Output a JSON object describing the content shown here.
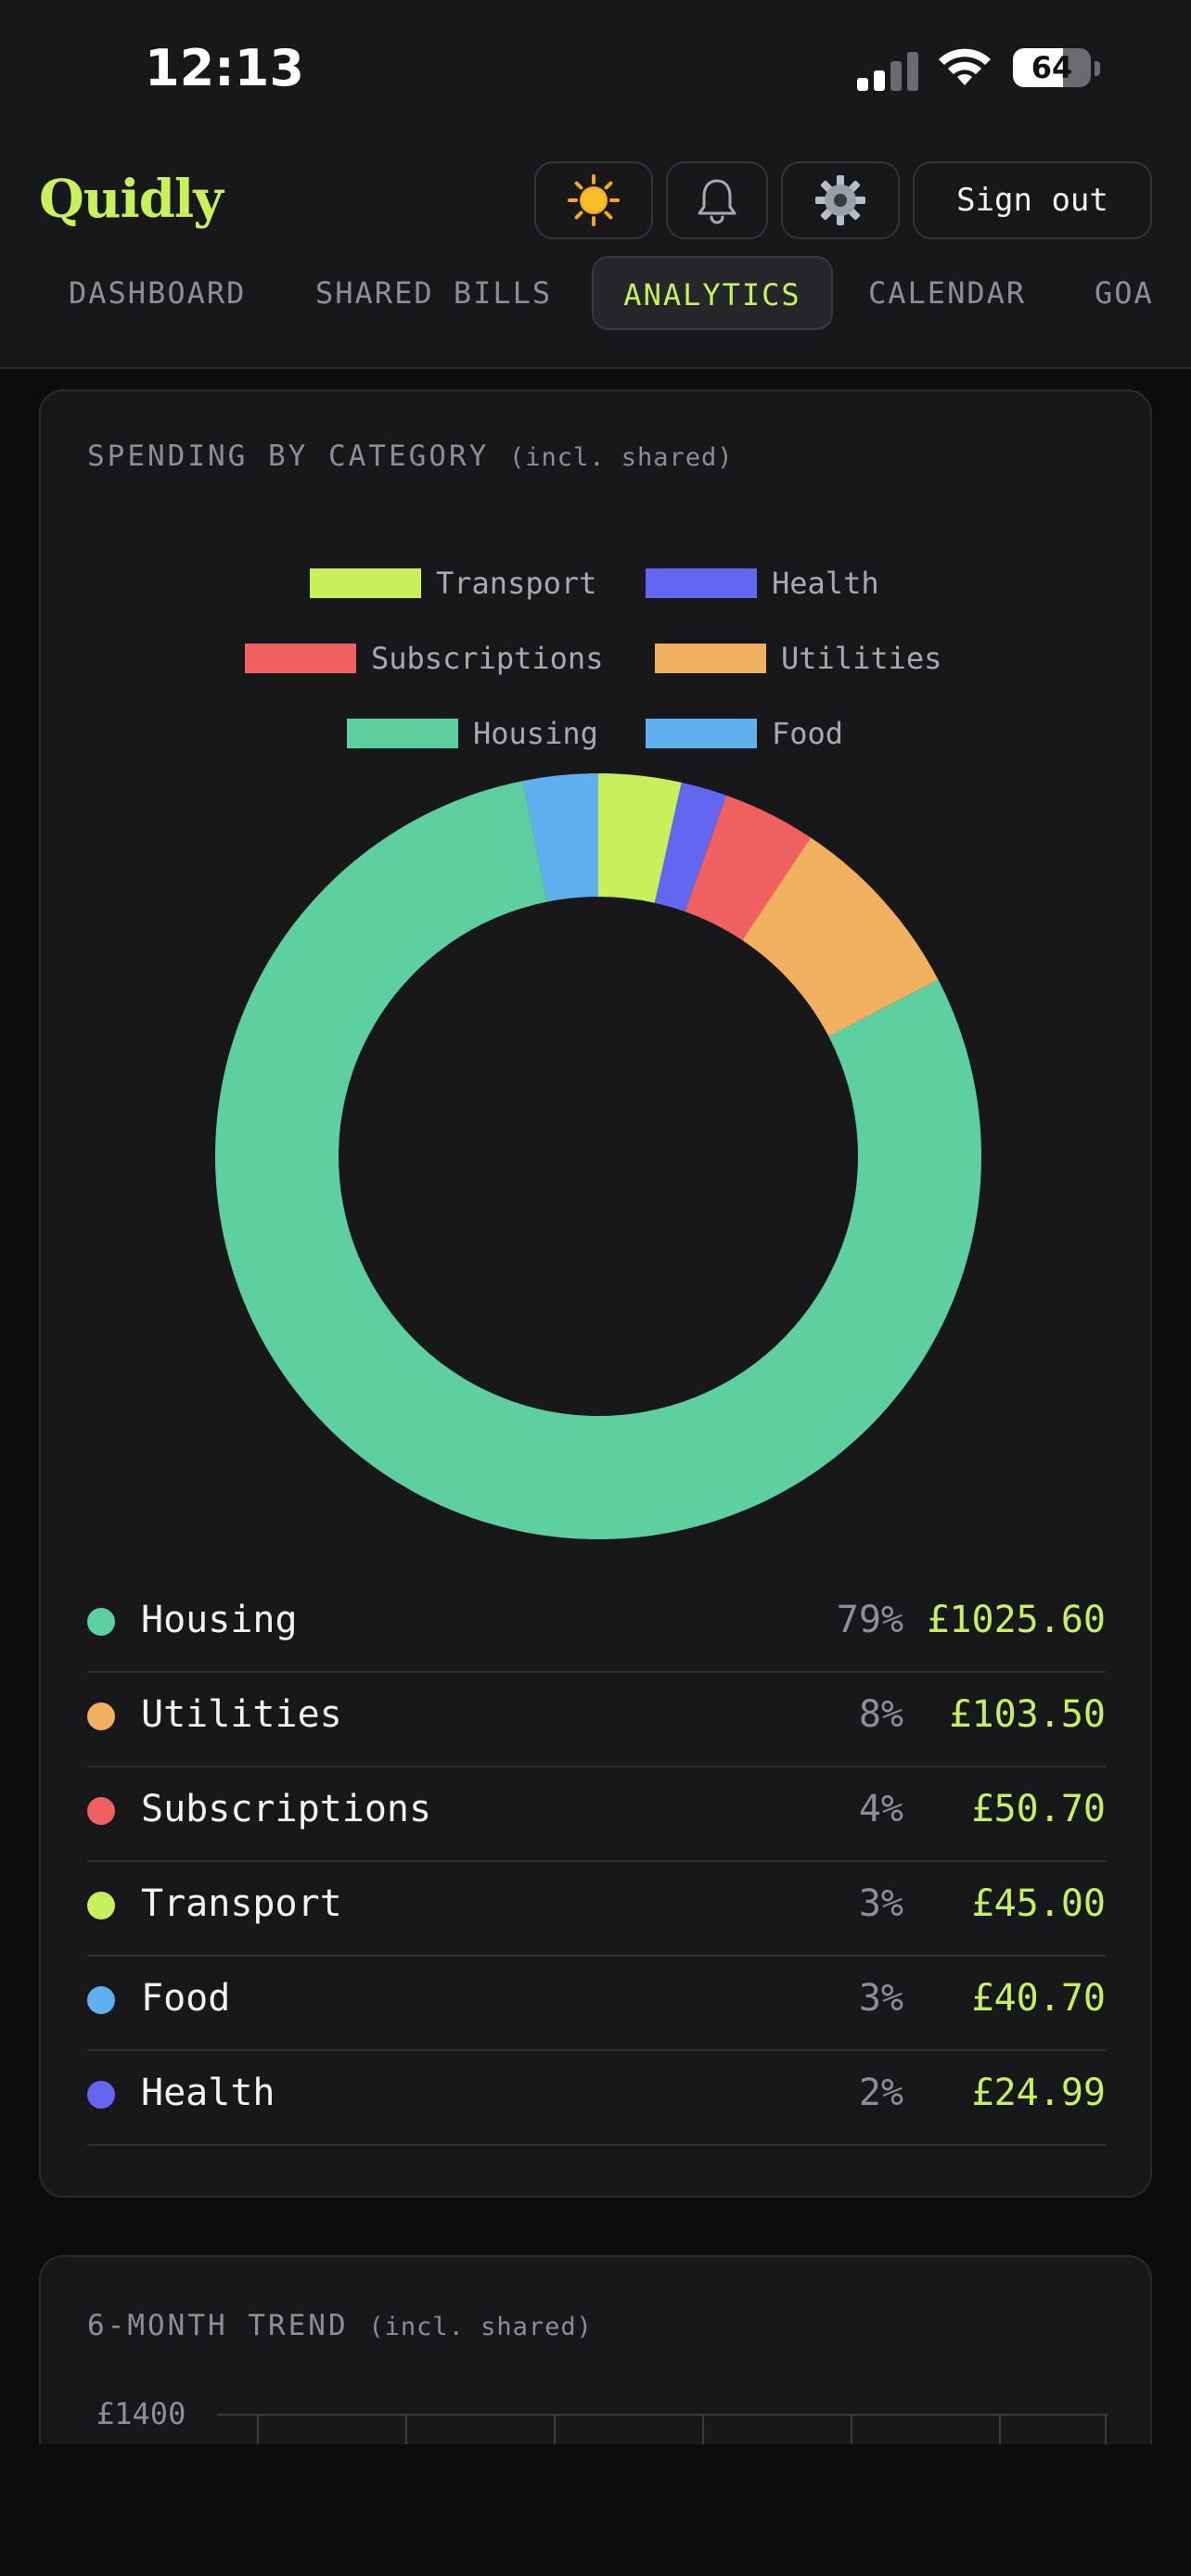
{
  "status_bar": {
    "time": "12:13",
    "battery": "64",
    "battery_level": 0.64
  },
  "header": {
    "brand": "Quidly",
    "theme_icon": "sun-icon",
    "notifications_icon": "bell-icon",
    "settings_icon": "gear-icon",
    "sign_out": "Sign out"
  },
  "tabs": [
    {
      "label": "DASHBOARD",
      "active": false
    },
    {
      "label": "SHARED BILLS",
      "active": false
    },
    {
      "label": "ANALYTICS",
      "active": true
    },
    {
      "label": "CALENDAR",
      "active": false
    },
    {
      "label": "GOA",
      "active": false
    }
  ],
  "spending": {
    "title": "SPENDING BY CATEGORY",
    "subtitle": "(incl. shared)"
  },
  "chart_data": {
    "type": "pie",
    "style": "donut",
    "legend": [
      "Transport",
      "Health",
      "Subscriptions",
      "Utilities",
      "Housing",
      "Food"
    ],
    "legend_placement": "top",
    "slices": [
      {
        "label": "Transport",
        "value": 45.0,
        "color": "#c8f05a"
      },
      {
        "label": "Health",
        "value": 24.99,
        "color": "#6366f1"
      },
      {
        "label": "Subscriptions",
        "value": 50.7,
        "color": "#f06060"
      },
      {
        "label": "Utilities",
        "value": 103.5,
        "color": "#f0b060"
      },
      {
        "label": "Housing",
        "value": 1025.6,
        "color": "#5ecfa0"
      },
      {
        "label": "Food",
        "value": 40.7,
        "color": "#60b0f0"
      }
    ]
  },
  "categories": [
    {
      "name": "Housing",
      "pct": "79%",
      "amount": "£1025.60",
      "color": "#5ecfa0"
    },
    {
      "name": "Utilities",
      "pct": "8%",
      "amount": "£103.50",
      "color": "#f0b060"
    },
    {
      "name": "Subscriptions",
      "pct": "4%",
      "amount": "£50.70",
      "color": "#f06060"
    },
    {
      "name": "Transport",
      "pct": "3%",
      "amount": "£45.00",
      "color": "#c8f05a"
    },
    {
      "name": "Food",
      "pct": "3%",
      "amount": "£40.70",
      "color": "#60b0f0"
    },
    {
      "name": "Health",
      "pct": "2%",
      "amount": "£24.99",
      "color": "#6366f1"
    }
  ],
  "trend": {
    "title": "6-MONTH TREND",
    "subtitle": "(incl. shared)",
    "y_top_tick": "£1400"
  }
}
